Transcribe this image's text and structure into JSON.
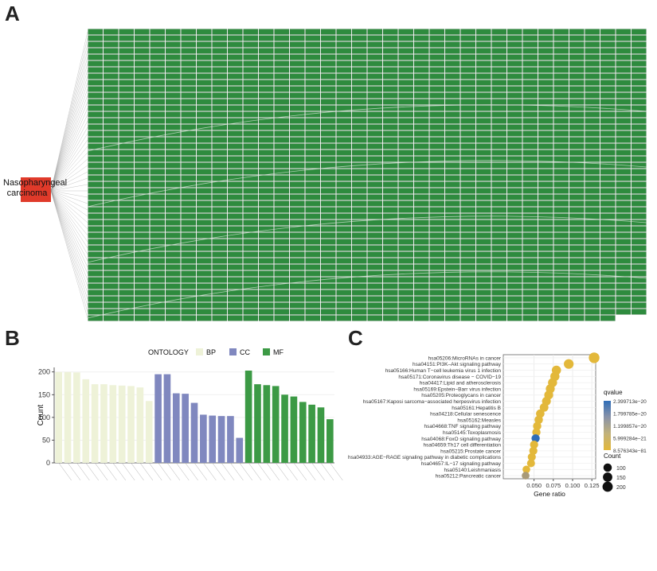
{
  "panels": {
    "a": "A",
    "b": "B",
    "c": "C"
  },
  "network": {
    "hub_label": "Nasopharyngeal carcinoma",
    "hub_color": "#e03a2a",
    "node_color": "#2e8b3e",
    "node_border": "#1e5f2a",
    "edge_color": "#9a9a9a"
  },
  "chart_data": [
    {
      "panel": "B",
      "type": "bar",
      "ylabel": "Count",
      "ylim": [
        0,
        210
      ],
      "yticks": [
        0,
        50,
        100,
        150,
        200
      ],
      "legend_title": "ONTOLOGY",
      "legend_position": "top",
      "series": [
        {
          "name": "BP",
          "color": "#eef2d8",
          "values": [
            200,
            200,
            199,
            184,
            173,
            173,
            171,
            170,
            169,
            166,
            136
          ]
        },
        {
          "name": "CC",
          "color": "#8088bf",
          "values": [
            195,
            195,
            153,
            152,
            132,
            106,
            104,
            103,
            103,
            55
          ]
        },
        {
          "name": "MF",
          "color": "#3c9a45",
          "values": [
            203,
            173,
            171,
            169,
            150,
            146,
            134,
            128,
            122,
            96
          ]
        }
      ]
    },
    {
      "panel": "C",
      "type": "scatter",
      "xlabel": "Gene ratio",
      "xlim": [
        0.01,
        0.13
      ],
      "xticks": [
        "0.050",
        "0.075",
        "0.100",
        "0.125"
      ],
      "xtick_values": [
        0.05,
        0.075,
        0.1,
        0.125
      ],
      "categories": [
        "hsa05206:MicroRNAs in cancer",
        "hsa04151:PI3K–Akt signaling pathway",
        "hsa05166:Human T−cell leukemia virus 1 infection",
        "hsa05171:Coronavirus disease − COVID−19",
        "hsa04417:Lipid and atherosclerosis",
        "hsa05169:Epstein−Barr virus infection",
        "hsa05205:Proteoglycans in cancer",
        "hsa05167:Kaposi sarcoma−associated herpesvirus infection",
        "hsa05161:Hepatitis B",
        "hsa04218:Cellular senescence",
        "hsa05162:Measles",
        "hsa04668:TNF signaling pathway",
        "hsa05145:Toxoplasmosis",
        "hsa04068:FoxO signaling pathway",
        "hsa04659:Th17 cell differentiation",
        "hsa05215:Prostate cancer",
        "hsa04933:AGE−RAGE signaling pathway in diabetic complications",
        "hsa04657:IL−17 signaling pathway",
        "hsa05140:Leishmaniasis",
        "hsa05212:Pancreatic cancer"
      ],
      "x": [
        0.128,
        0.095,
        0.079,
        0.077,
        0.074,
        0.071,
        0.069,
        0.066,
        0.063,
        0.058,
        0.056,
        0.054,
        0.053,
        0.052,
        0.05,
        0.049,
        0.047,
        0.046,
        0.04,
        0.039
      ],
      "count": [
        230,
        170,
        140,
        138,
        133,
        128,
        123,
        118,
        113,
        103,
        100,
        97,
        95,
        93,
        90,
        88,
        84,
        82,
        71,
        70
      ],
      "qvalue_color": [
        "#e3b83a",
        "#e3b83a",
        "#e3b83a",
        "#e3b83a",
        "#e3b83a",
        "#e3b83a",
        "#e3b83a",
        "#e3b83a",
        "#e3b83a",
        "#e3b83a",
        "#e3b83a",
        "#e3b83a",
        "#e3b83a",
        "#2f6db8",
        "#e3b83a",
        "#e3b83a",
        "#e3b83a",
        "#e3b83a",
        "#e3b83a",
        "#a89a78"
      ],
      "legend": {
        "qvalue_title": "qvalue",
        "qvalue_labels": [
          "2.399713e−20",
          "1.799785e−20",
          "1.199857e−20",
          "5.999284e−21",
          "8.576343e−81"
        ],
        "gradient": [
          "#2f6db8",
          "#8a93a8",
          "#c2b27a",
          "#e3b83a"
        ],
        "count_title": "Count",
        "count_labels": [
          "100",
          "150",
          "200"
        ],
        "count_values": [
          100,
          150,
          200
        ]
      }
    }
  ]
}
